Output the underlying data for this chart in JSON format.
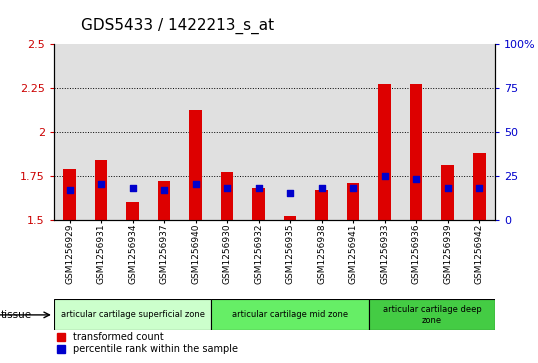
{
  "title": "GDS5433 / 1422213_s_at",
  "samples": [
    "GSM1256929",
    "GSM1256931",
    "GSM1256934",
    "GSM1256937",
    "GSM1256940",
    "GSM1256930",
    "GSM1256932",
    "GSM1256935",
    "GSM1256938",
    "GSM1256941",
    "GSM1256933",
    "GSM1256936",
    "GSM1256939",
    "GSM1256942"
  ],
  "transformed_count": [
    1.79,
    1.84,
    1.6,
    1.72,
    2.12,
    1.77,
    1.68,
    1.52,
    1.67,
    1.71,
    2.27,
    2.27,
    1.81,
    1.88
  ],
  "percentile_rank": [
    17,
    20,
    18,
    17,
    20,
    18,
    18,
    15,
    18,
    18,
    25,
    23,
    18,
    18
  ],
  "ylim_left": [
    1.5,
    2.5
  ],
  "ylim_right": [
    0,
    100
  ],
  "yticks_left": [
    1.5,
    1.75,
    2.0,
    2.25,
    2.5
  ],
  "yticks_right": [
    0,
    25,
    50,
    75,
    100
  ],
  "ytick_labels_left": [
    "1.5",
    "1.75",
    "2",
    "2.25",
    "2.5"
  ],
  "ytick_labels_right": [
    "0",
    "25",
    "50",
    "75",
    "100%"
  ],
  "gridlines_at": [
    1.75,
    2.0,
    2.25
  ],
  "bar_color": "#dd0000",
  "dot_color": "#0000cc",
  "bar_width": 0.4,
  "dot_size": 18,
  "zones": [
    {
      "label": "articular cartilage superficial zone",
      "start": 0,
      "end": 5,
      "color": "#ccffcc"
    },
    {
      "label": "articular cartilage mid zone",
      "start": 5,
      "end": 10,
      "color": "#66ee66"
    },
    {
      "label": "articular cartilage deep\nzone",
      "start": 10,
      "end": 14,
      "color": "#44cc44"
    }
  ],
  "tissue_label": "tissue",
  "legend_items": [
    {
      "label": "transformed count",
      "color": "#dd0000"
    },
    {
      "label": "percentile rank within the sample",
      "color": "#0000cc"
    }
  ],
  "bg_color": "#e0e0e0",
  "title_fontsize": 11,
  "tick_fontsize": 6.5
}
